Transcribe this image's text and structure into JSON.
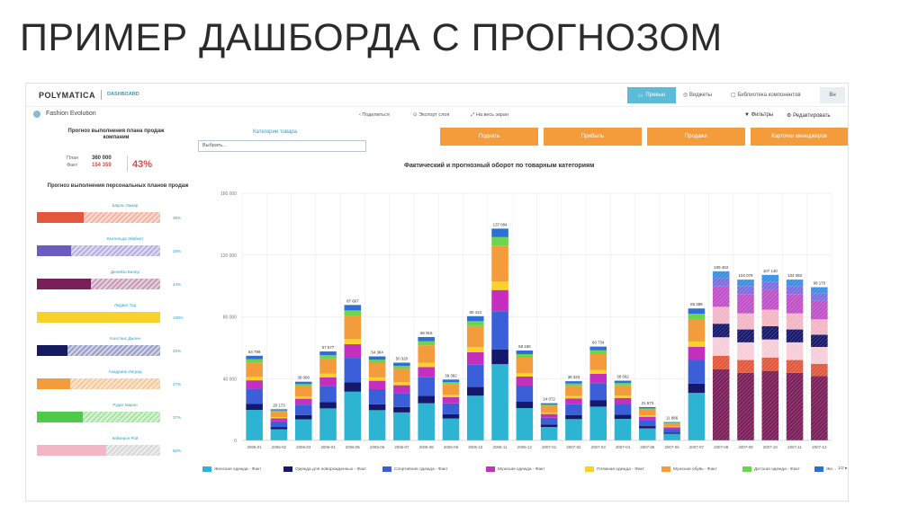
{
  "slide": {
    "title": "ПРИМЕР ДАШБОРДА С ПРОГНОЗОМ"
  },
  "app": {
    "logo": "POLYMATICA",
    "section": "DASHBOARD",
    "report_name": "Fashion Evolution",
    "top": {
      "preview": "Превью",
      "widgets": "Виджеты",
      "library": "Библиотека компонентов",
      "user": "Вн"
    },
    "sub": {
      "share": "Поделиться",
      "export": "Экспорт слоя",
      "fullscreen": "На весь экран",
      "filters": "Фильтры",
      "edit": "Редактировать"
    }
  },
  "kpi": {
    "title": "Прогноз выполнения плана продаж компании",
    "plan_label": "План",
    "plan_value": "360 000",
    "fact_label": "Факт",
    "fact_value": "154 359",
    "percent": "43%"
  },
  "personal": {
    "title": "Прогноз выполнения персональных планов продаж",
    "items": [
      {
        "name": "Шарль Ламар",
        "pct": "38%",
        "fraction": 0.38,
        "color": "#e2583d",
        "base": "#f5b3a0"
      },
      {
        "name": "Кантельда Эйвберт",
        "pct": "28%",
        "fraction": 0.28,
        "color": "#6b5bc2",
        "base": "#b7afe2"
      },
      {
        "name": "Денейзи Валер",
        "pct": "44%",
        "fraction": 0.44,
        "color": "#7a1f5a",
        "base": "#c79ab8"
      },
      {
        "name": "Людвиг Тод",
        "pct": "100%",
        "fraction": 1.0,
        "color": "#f6d22a",
        "base": "#f6d22a"
      },
      {
        "name": "Констанс Джонн",
        "pct": "25%",
        "fraction": 0.25,
        "color": "#151c5e",
        "base": "#9aa0c8"
      },
      {
        "name": "Анадрине Инград",
        "pct": "27%",
        "fraction": 0.27,
        "color": "#f49b3c",
        "base": "#f7c99a"
      },
      {
        "name": "Рудат Марон",
        "pct": "37%",
        "fraction": 0.37,
        "color": "#4fc94a",
        "base": "#a9e3a5"
      },
      {
        "name": "Кейзерон Рой",
        "pct": "56%",
        "fraction": 0.56,
        "color": "#f2b6c4",
        "base": "#d8d8d8"
      }
    ]
  },
  "filters": {
    "category_label": "Категории товара",
    "category_placeholder": "Выбрать...",
    "buttons": [
      "Поднять",
      "Прибыль",
      "Продажи",
      "Карточки менеджеров"
    ]
  },
  "chart_data": {
    "type": "bar",
    "title": "Фактический и прогнозный оборот по товарным категориям",
    "ylim": [
      0,
      160000
    ],
    "yticks": [
      "0",
      "40 000",
      "80 000",
      "120 000",
      "160 000"
    ],
    "categories": [
      "2006-01",
      "2006-02",
      "2006-03",
      "2006-04",
      "2006-05",
      "2006-06",
      "2006-07",
      "2006-08",
      "2006-09",
      "2006-10",
      "2006-11",
      "2006-12",
      "2007-01",
      "2007-02",
      "2007-03",
      "2007-04",
      "2007-05",
      "2007-06",
      "2007-07",
      "2007-08",
      "2007-09",
      "2007-10",
      "2007-11",
      "2007-12"
    ],
    "totals": [
      54789,
      20173,
      38000,
      57577,
      87667,
      54384,
      50320,
      66915,
      39382,
      80413,
      137084,
      58190,
      24072,
      38323,
      60734,
      38662,
      21573,
      11886,
      85389,
      109463,
      104079,
      107140,
      104083,
      99175
    ],
    "total_labels": [
      "54 789",
      "20 173",
      "38 000",
      "57 577",
      "87 667",
      "54 384",
      "50 320",
      "66 915",
      "39 382",
      "80 413",
      "137 084",
      "58 190",
      "24 072",
      "38 323",
      "60 734",
      "38 662",
      "21 573",
      "11 886",
      "85 389",
      "109 463",
      "104 079",
      "107 140",
      "104 083",
      "99 175"
    ],
    "forecast_from_index": 19,
    "series": [
      {
        "name": "Женская одежда - Факт",
        "color": "#2db4d2"
      },
      {
        "name": "Одежда для новорожденных - Факт",
        "color": "#16186b"
      },
      {
        "name": "Спортивная одежда - Факт",
        "color": "#3b5fd8"
      },
      {
        "name": "Мужская одежда - Факт",
        "color": "#c52fbd"
      },
      {
        "name": "Пляжная одежда - Факт",
        "color": "#f6d22a"
      },
      {
        "name": "Мужская обувь - Факт",
        "color": "#f49b3c"
      },
      {
        "name": "Детская одежда - Факт",
        "color": "#6dd44d"
      },
      {
        "name": "Же...",
        "color": "#2d6fd4"
      }
    ]
  }
}
